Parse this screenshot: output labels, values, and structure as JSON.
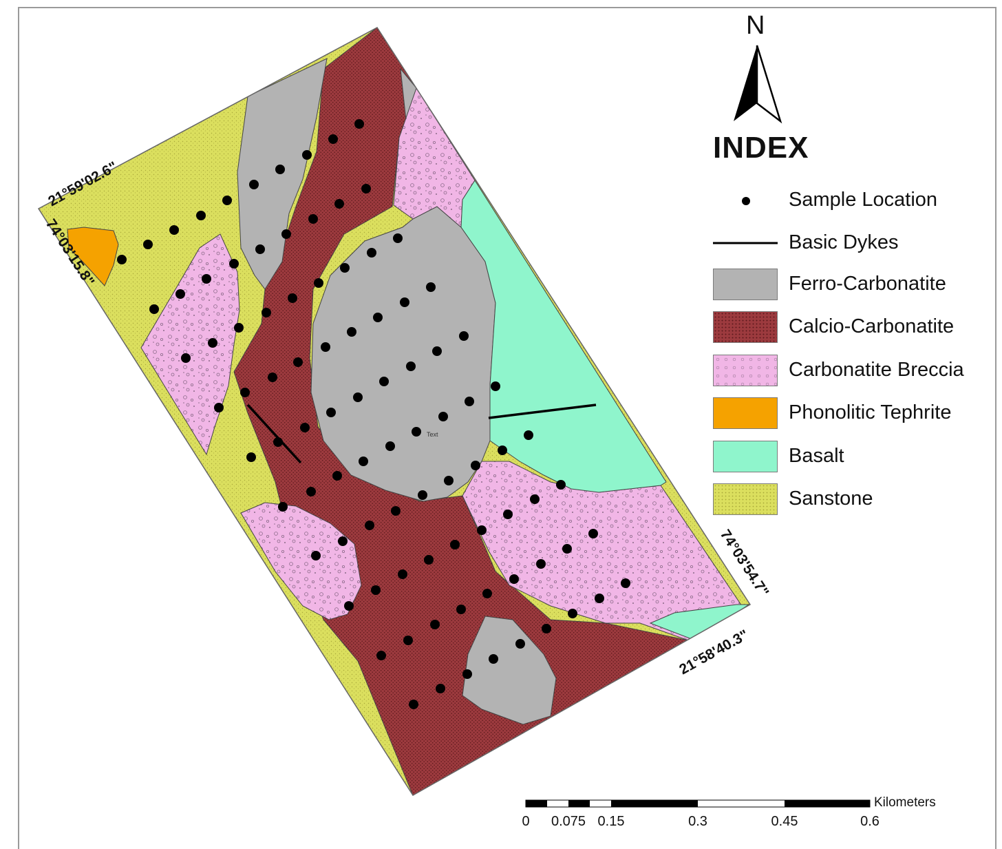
{
  "map": {
    "legend_title": "INDEX",
    "north_label": "N",
    "corner_coordinates": {
      "top_left_lat": "21°59'02.6\"",
      "top_left_lon": "74°03'15.8\"",
      "bottom_right_lon": "74°03'54.7\"",
      "bottom_right_lat": "21°58'40.3\""
    },
    "center_marker_text": "Text",
    "legend": [
      {
        "label": "Sample Location",
        "symbol": "dot",
        "color": "#000000"
      },
      {
        "label": "Basic Dykes",
        "symbol": "line",
        "color": "#000000"
      },
      {
        "label": "Ferro-Carbonatite",
        "symbol": "fill",
        "color": "#b3b3b3"
      },
      {
        "label": "Calcio-Carbonatite",
        "symbol": "fill",
        "color": "#9c3a3e"
      },
      {
        "label": "Carbonatite Breccia",
        "symbol": "fill",
        "color": "#f1b6e6"
      },
      {
        "label": "Phonolitic Tephrite",
        "symbol": "fill",
        "color": "#f5a200"
      },
      {
        "label": "Basalt",
        "symbol": "fill",
        "color": "#8ff5cc"
      },
      {
        "label": "Sanstone",
        "symbol": "fill",
        "color": "#dbdf5e"
      }
    ],
    "scale_bar": {
      "unit": "Kilometers",
      "ticks": [
        "0",
        "0.075",
        "0.15",
        "0.3",
        "0.45",
        "0.6"
      ]
    }
  }
}
